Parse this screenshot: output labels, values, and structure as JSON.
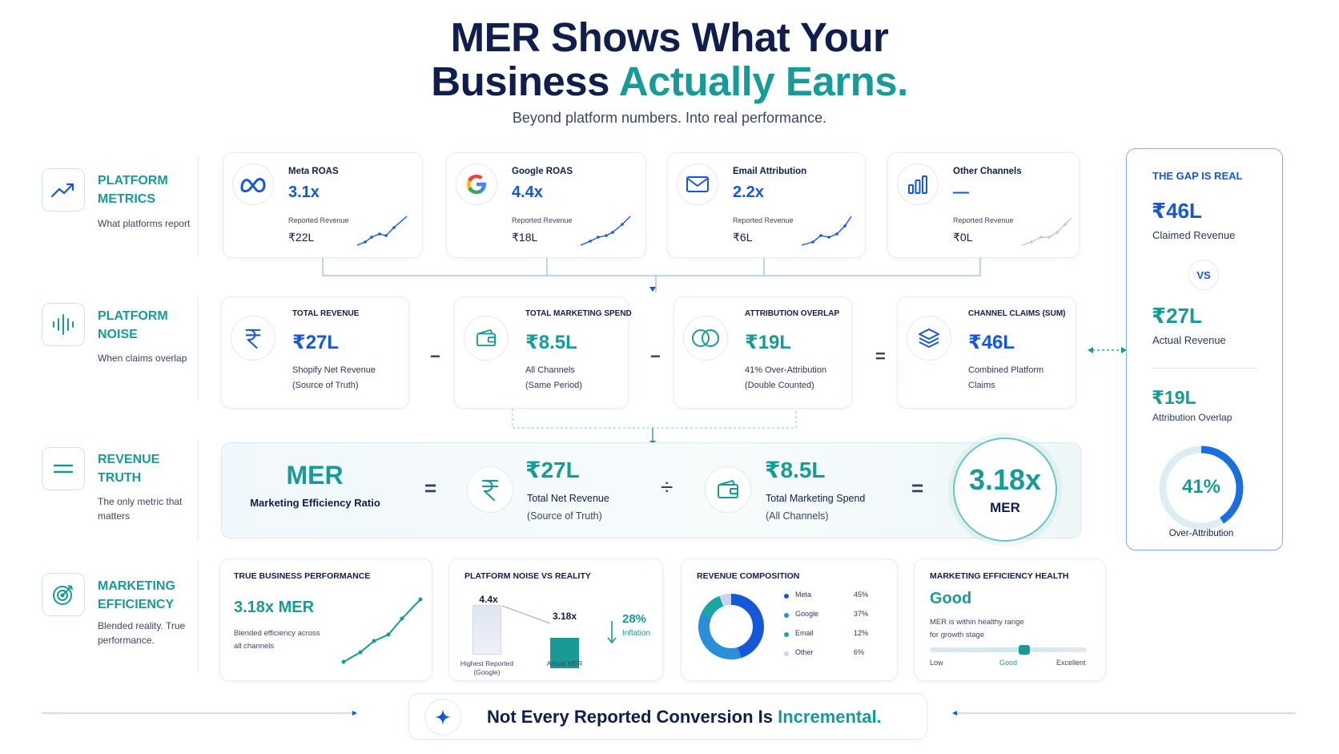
{
  "header": {
    "title_line1": "MER Shows What Your",
    "title_line2_a": "Business",
    "title_line2_b": "Actually Earns.",
    "subtitle": "Beyond platform numbers. Into real performance."
  },
  "rows": [
    {
      "title": "PLATFORM METRICS",
      "desc": "What platforms report"
    },
    {
      "title": "PLATFORM NOISE",
      "desc": "When claims overlap"
    },
    {
      "title": "REVENUE TRUTH",
      "desc": "The only metric that matters"
    },
    {
      "title": "MARKETING EFFICIENCY",
      "desc": "Blended reality. True performance."
    }
  ],
  "platform_cards": [
    {
      "name": "Meta ROAS",
      "value": "3.1x",
      "rev_label": "Reported Revenue",
      "rev": "₹22L",
      "icon": "meta-icon"
    },
    {
      "name": "Google ROAS",
      "value": "4.4x",
      "rev_label": "Reported Revenue",
      "rev": "₹18L",
      "icon": "google-icon"
    },
    {
      "name": "Email Attribution",
      "value": "2.2x",
      "rev_label": "Reported Revenue",
      "rev": "₹6L",
      "icon": "mail-icon"
    },
    {
      "name": "Other Channels",
      "value": "—",
      "rev_label": "Reported Revenue",
      "rev": "₹0L",
      "icon": "bar-chart-icon"
    }
  ],
  "noise_cards": [
    {
      "label": "TOTAL REVENUE",
      "value": "₹27L",
      "d1": "Shopify Net Revenue",
      "d2": "(Source of Truth)",
      "icon": "rupee-icon"
    },
    {
      "label": "TOTAL MARKETING SPEND",
      "value": "₹8.5L",
      "d1": "All Channels",
      "d2": "(Same Period)",
      "icon": "wallet-icon"
    },
    {
      "label": "ATTRIBUTION OVERLAP",
      "value": "₹19L",
      "d1": "41% Over-Attribution",
      "d2": "(Double Counted)",
      "icon": "overlap-icon"
    },
    {
      "label": "CHANNEL CLAIMS (SUM)",
      "value": "₹46L",
      "d1": "Combined Platform",
      "d2": "Claims",
      "icon": "layers-icon"
    }
  ],
  "operators": {
    "minus": "−",
    "equals": "=",
    "divide": "÷"
  },
  "mer": {
    "title": "MER",
    "subtitle": "Marketing Efficiency Ratio",
    "rev_value": "₹27L",
    "rev_d1": "Total Net Revenue",
    "rev_d2": "(Source of Truth)",
    "spend_value": "₹8.5L",
    "spend_d1": "Total Marketing Spend",
    "spend_d2": "(All Channels)",
    "result": "3.18x",
    "result_label": "MER"
  },
  "gap": {
    "title": "THE GAP IS REAL",
    "claimed_value": "₹46L",
    "claimed_label": "Claimed Revenue",
    "vs": "VS",
    "actual_value": "₹27L",
    "actual_label": "Actual Revenue",
    "overlap_value": "₹19L",
    "overlap_label": "Attribution Overlap",
    "donut_value": "41%",
    "donut_fraction": 0.41,
    "donut_label": "Over-Attribution"
  },
  "bottom": {
    "perf": {
      "title": "TRUE BUSINESS PERFORMANCE",
      "value": "3.18x MER",
      "d1": "Blended efficiency across",
      "d2": "all channels"
    },
    "noise": {
      "title": "PLATFORM NOISE VS REALITY",
      "bar1_value": "4.4x",
      "bar1_num": 4.4,
      "bar1_l1": "Highest Reported",
      "bar1_l2": "(Google)",
      "bar2_value": "3.18x",
      "bar2_num": 3.18,
      "bar2_l1": "Actual MER",
      "inflation_value": "28%",
      "inflation_label": "Inflation"
    },
    "composition": {
      "title": "REVENUE COMPOSITION",
      "items": [
        {
          "name": "Meta",
          "pct": "45%",
          "value": 45,
          "color": "#1557d6"
        },
        {
          "name": "Google",
          "pct": "37%",
          "value": 37,
          "color": "#2a8fd8"
        },
        {
          "name": "Email",
          "pct": "12%",
          "value": 12,
          "color": "#1ba79e"
        },
        {
          "name": "Other",
          "pct": "6%",
          "value": 6,
          "color": "#c9d3ee"
        }
      ]
    },
    "health": {
      "title": "MARKETING EFFICIENCY HEALTH",
      "status": "Good",
      "d1": "MER is within healthy range",
      "d2": "for growth stage",
      "low": "Low",
      "good": "Good",
      "excellent": "Excellent",
      "level": 0.6
    }
  },
  "footer": {
    "text_a": "Not Every Reported Conversion Is",
    "text_b": "Incremental."
  },
  "colors": {
    "teal": "#189a96",
    "blue": "#1557d6",
    "navy": "#0f1e4a"
  }
}
